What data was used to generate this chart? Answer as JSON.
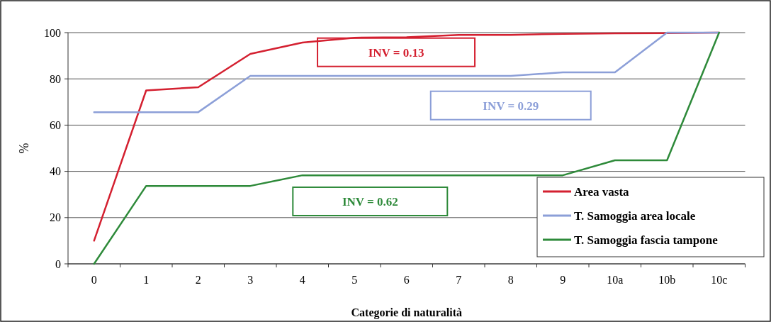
{
  "chart_data": {
    "type": "line",
    "xlabel": "Categorie di naturalità",
    "ylabel": "%",
    "categories": [
      "0",
      "1",
      "2",
      "3",
      "4",
      "5",
      "6",
      "7",
      "8",
      "9",
      "10a",
      "10b",
      "10c"
    ],
    "series": [
      {
        "name": "Area vasta",
        "color": "#d42030",
        "values": [
          10,
          75,
          76.4,
          90.8,
          95.7,
          97.8,
          98,
          99,
          99,
          99.5,
          99.7,
          99.8,
          100
        ]
      },
      {
        "name": "T. Samoggia area locale",
        "color": "#8c9fd8",
        "values": [
          65.6,
          65.6,
          65.6,
          81.3,
          81.3,
          81.3,
          81.3,
          81.3,
          81.3,
          82.8,
          82.8,
          100,
          100
        ]
      },
      {
        "name": "T. Samoggia fascia tampone",
        "color": "#2e8a3a",
        "values": [
          0,
          33.7,
          33.7,
          33.7,
          38.3,
          38.3,
          38.3,
          38.3,
          38.3,
          38.3,
          44.8,
          44.8,
          100
        ]
      }
    ],
    "annotations": [
      "INV = 0.13",
      "INV = 0.29",
      "INV = 0.62"
    ],
    "ylim": [
      0,
      100
    ],
    "yticks": [
      0,
      20,
      40,
      60,
      80,
      100
    ],
    "grid": "y",
    "legend": "bottom right",
    "marker": "none",
    "line_style": "solid"
  }
}
